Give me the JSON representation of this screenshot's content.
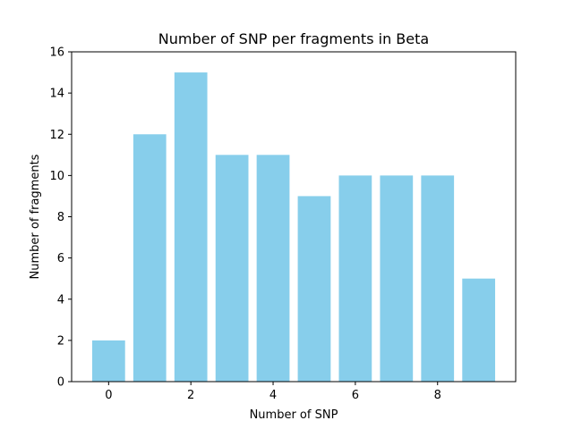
{
  "chart_data": {
    "type": "bar",
    "title": "Number of SNP per fragments in Beta",
    "xlabel": "Number of SNP",
    "ylabel": "Number of fragments",
    "categories": [
      0,
      1,
      2,
      3,
      4,
      5,
      6,
      7,
      8,
      9
    ],
    "values": [
      2,
      12,
      15,
      11,
      11,
      9,
      10,
      10,
      10,
      5
    ],
    "xlim": [
      -0.9,
      9.9
    ],
    "ylim": [
      0,
      16
    ],
    "xticks": [
      0,
      2,
      4,
      6,
      8
    ],
    "yticks": [
      0,
      2,
      4,
      6,
      8,
      10,
      12,
      14,
      16
    ],
    "bar_color": "#87ceeb",
    "grid": false,
    "legend": false
  }
}
